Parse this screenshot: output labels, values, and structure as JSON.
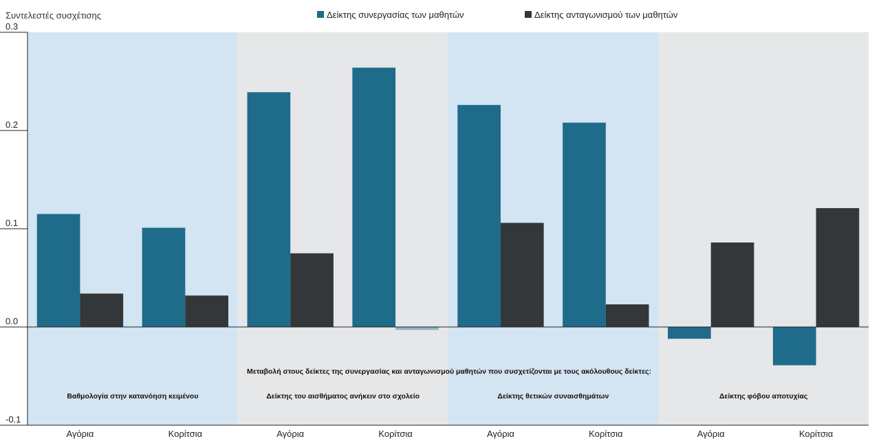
{
  "chart_data": {
    "type": "bar",
    "ylabel": "Συντελεστές συσχέτισης",
    "ylim": [
      -0.1,
      0.3
    ],
    "yticks": [
      "0.3",
      "0.2",
      "0.1",
      "0.0",
      "-0.1"
    ],
    "annotation": "Μεταβολή στους δείκτες της συνεργασίας και ανταγωνισμού μαθητών που συσχετίζονται με τους ακόλουθους δείκτες:",
    "groups": [
      "Βαθμολογία στην κατανόηση κειμένου",
      "Δείκτης του αισθήματος ανήκειν στο σχολείο",
      "Δείκτης θετικών συναισθημάτων",
      "Δείκτης φόβου αποτυχίας"
    ],
    "categories": [
      "Αγόρια",
      "Κορίτσια",
      "Αγόρια",
      "Κορίτσια",
      "Αγόρια",
      "Κορίτσια",
      "Αγόρια",
      "Κορίτσια"
    ],
    "series": [
      {
        "name": "Δείκτης συνεργασίας των μαθητών",
        "color": "#1f6b8a",
        "values": [
          0.115,
          0.101,
          0.239,
          0.264,
          0.226,
          0.208,
          -0.012,
          -0.039
        ]
      },
      {
        "name": "Δείκτης ανταγωνισμού των μαθητών",
        "color": "#333739",
        "values": [
          0.034,
          0.032,
          0.075,
          -0.003,
          0.106,
          0.023,
          0.086,
          0.121
        ]
      }
    ],
    "faded_bars": [
      {
        "series": 1,
        "index": 3,
        "color": "#8fb2c8"
      }
    ],
    "band_colors": [
      "#d3e4f2",
      "#e6e7e8"
    ],
    "legend_position": "top-center",
    "grid": false
  }
}
